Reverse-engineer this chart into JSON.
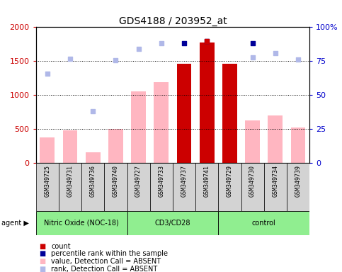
{
  "title": "GDS4188 / 203952_at",
  "samples": [
    "GSM349725",
    "GSM349731",
    "GSM349736",
    "GSM349740",
    "GSM349727",
    "GSM349733",
    "GSM349737",
    "GSM349741",
    "GSM349729",
    "GSM349730",
    "GSM349734",
    "GSM349739"
  ],
  "bar_values_absent": [
    380,
    480,
    160,
    500,
    1060,
    1190,
    null,
    null,
    null,
    630,
    700,
    520
  ],
  "bar_values_present": [
    null,
    null,
    null,
    null,
    null,
    null,
    1460,
    1780,
    1460,
    null,
    null,
    null
  ],
  "rank_absent": [
    1320,
    1540,
    760,
    1510,
    1680,
    1760,
    null,
    null,
    null,
    1560,
    1620,
    1530
  ],
  "percentile_present": [
    null,
    null,
    null,
    null,
    null,
    null,
    1760,
    1800,
    null,
    1760,
    null,
    null
  ],
  "count_dot": [
    null,
    null,
    null,
    null,
    null,
    null,
    null,
    1800,
    null,
    null,
    null,
    null
  ],
  "ylim_left": [
    0,
    2000
  ],
  "ylim_right": [
    0,
    100
  ],
  "yticks_left": [
    0,
    500,
    1000,
    1500,
    2000
  ],
  "yticks_right": [
    0,
    25,
    50,
    75,
    100
  ],
  "bar_absent_color": "#FFB6C1",
  "bar_present_color": "#CC0000",
  "rank_absent_color": "#B0B8E8",
  "percentile_present_color": "#000099",
  "count_dot_color": "#CC0000",
  "left_axis_color": "#CC0000",
  "right_axis_color": "#0000CC",
  "group_spans": [
    [
      0,
      3,
      "Nitric Oxide (NOC-18)"
    ],
    [
      4,
      7,
      "CD3/CD28"
    ],
    [
      8,
      11,
      "control"
    ]
  ],
  "group_color": "#90EE90",
  "sample_box_color": "#D3D3D3"
}
